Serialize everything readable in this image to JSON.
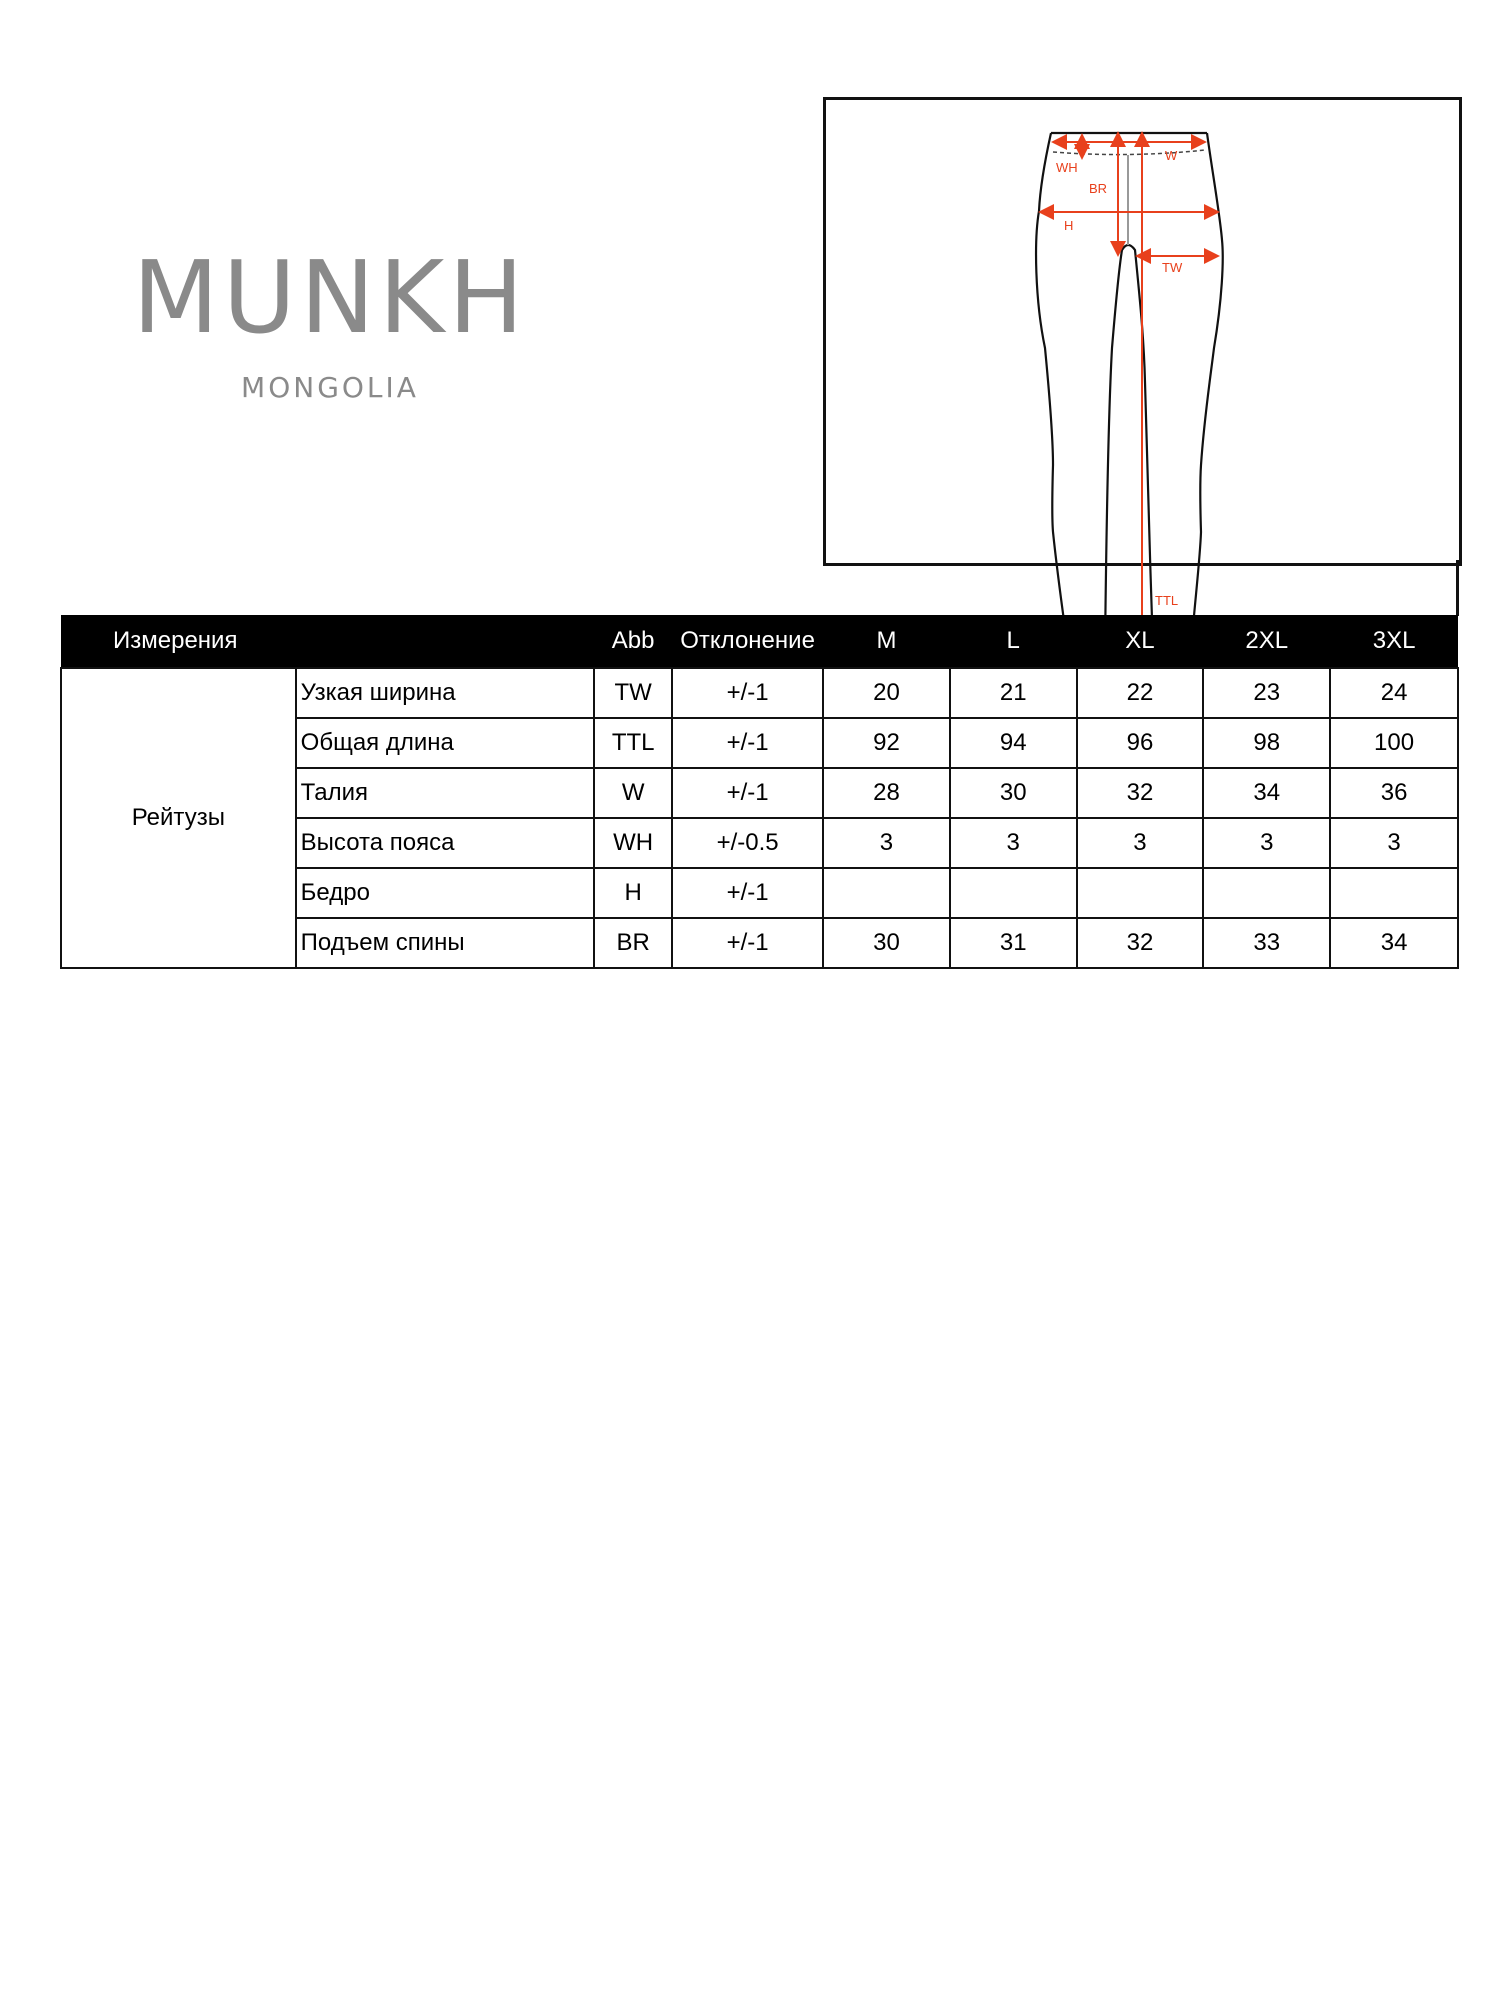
{
  "brand": {
    "name": "MUNKH",
    "subtitle": "MONGOLIA",
    "color": "#8a8a8a"
  },
  "diagram": {
    "labels": {
      "w": "W",
      "wh": "WH",
      "br": "BR",
      "h": "H",
      "tw": "TW",
      "ttl": "TTL"
    },
    "accent_color": "#e8401c"
  },
  "table": {
    "headers": {
      "measure": "Измерения",
      "abb": "Abb",
      "tolerance": "Отклонение",
      "sizes": [
        "M",
        "L",
        "XL",
        "2XL",
        "3XL"
      ]
    },
    "category": "Рейтузы",
    "rows": [
      {
        "name": "Узкая ширина",
        "abb": "TW",
        "tol": "+/-1",
        "values": [
          "20",
          "21",
          "22",
          "23",
          "24"
        ]
      },
      {
        "name": "Общая длина",
        "abb": "TTL",
        "tol": "+/-1",
        "values": [
          "92",
          "94",
          "96",
          "98",
          "100"
        ]
      },
      {
        "name": "Талия",
        "abb": "W",
        "tol": "+/-1",
        "values": [
          "28",
          "30",
          "32",
          "34",
          "36"
        ]
      },
      {
        "name": "Высота пояса",
        "abb": "WH",
        "tol": "+/-0.5",
        "values": [
          "3",
          "3",
          "3",
          "3",
          "3"
        ]
      },
      {
        "name": "Бедро",
        "abb": "H",
        "tol": "+/-1",
        "values": [
          "",
          "",
          "",
          "",
          ""
        ]
      },
      {
        "name": "Подъем спины",
        "abb": "BR",
        "tol": "+/-1",
        "values": [
          "30",
          "31",
          "32",
          "33",
          "34"
        ]
      }
    ]
  }
}
